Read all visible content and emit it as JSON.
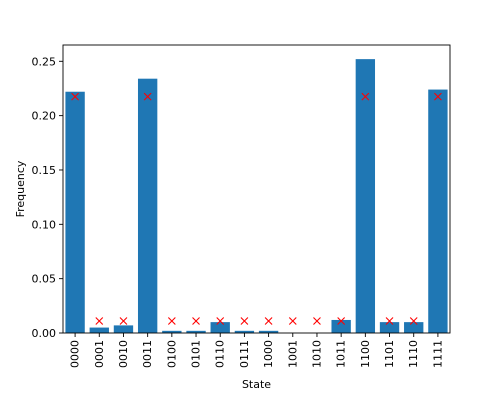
{
  "chart_data": {
    "type": "bar",
    "categories": [
      "0000",
      "0001",
      "0010",
      "0011",
      "0100",
      "0101",
      "0110",
      "0111",
      "1000",
      "1001",
      "1010",
      "1011",
      "1100",
      "1101",
      "1110",
      "1111"
    ],
    "series": [
      {
        "type": "bar",
        "color": "#1f77b4",
        "values": [
          0.222,
          0.005,
          0.007,
          0.234,
          0.002,
          0.002,
          0.01,
          0.002,
          0.002,
          0.0,
          0.0,
          0.012,
          0.252,
          0.01,
          0.01,
          0.224
        ]
      },
      {
        "type": "scatter",
        "marker": "x",
        "color": "#ff0000",
        "values": [
          0.2175,
          0.011,
          0.011,
          0.2175,
          0.011,
          0.011,
          0.011,
          0.011,
          0.011,
          0.011,
          0.011,
          0.011,
          0.2175,
          0.011,
          0.011,
          0.2175
        ]
      }
    ],
    "title": "",
    "xlabel": "State",
    "ylabel": "Frequency",
    "ylim": [
      0,
      0.265
    ],
    "yticks": [
      "0.00",
      "0.05",
      "0.10",
      "0.15",
      "0.20",
      "0.25"
    ],
    "ytick_values": [
      0,
      0.05,
      0.1,
      0.15,
      0.2,
      0.25
    ],
    "grid": false,
    "legend": "none"
  }
}
